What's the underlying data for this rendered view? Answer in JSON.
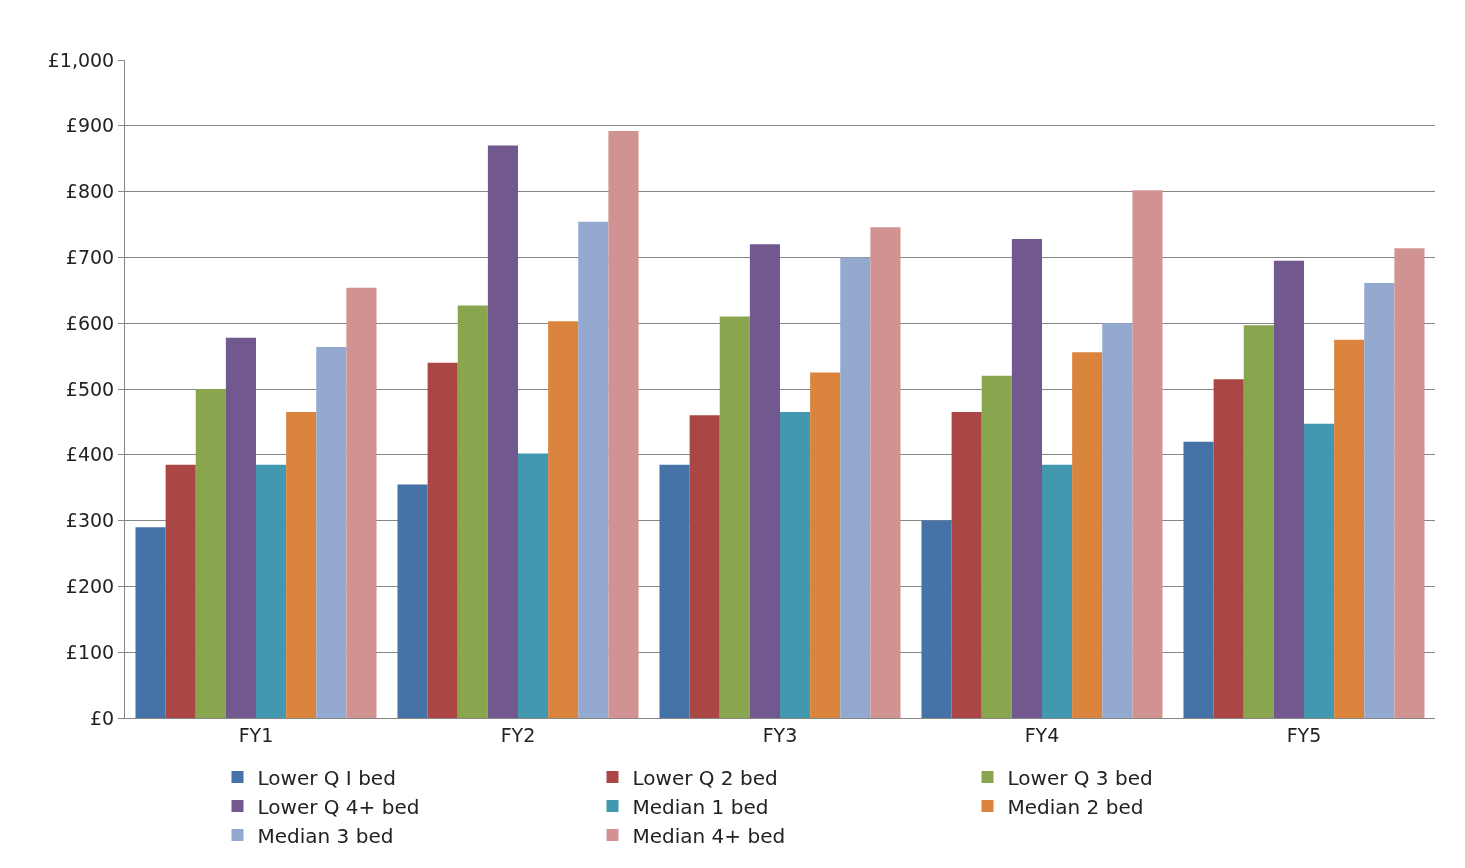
{
  "chart_data": {
    "type": "bar",
    "categories": [
      "FY1",
      "FY2",
      "FY3",
      "FY4",
      "FY5"
    ],
    "series": [
      {
        "name": "Lower Q I bed",
        "color": "#4572a7",
        "values": [
          290,
          355,
          385,
          300,
          420
        ]
      },
      {
        "name": "Lower Q 2 bed",
        "color": "#aa4643",
        "values": [
          385,
          540,
          460,
          465,
          515
        ]
      },
      {
        "name": "Lower Q 3 bed",
        "color": "#89a54e",
        "values": [
          500,
          627,
          610,
          520,
          597
        ]
      },
      {
        "name": "Lower Q 4+ bed",
        "color": "#71588f",
        "values": [
          578,
          870,
          720,
          728,
          695
        ]
      },
      {
        "name": "Median 1 bed",
        "color": "#4198af",
        "values": [
          385,
          402,
          465,
          385,
          447
        ]
      },
      {
        "name": "Median 2 bed",
        "color": "#db843d",
        "values": [
          465,
          603,
          525,
          556,
          575
        ]
      },
      {
        "name": "Median 3 bed",
        "color": "#93a9cf",
        "values": [
          564,
          754,
          700,
          600,
          661
        ]
      },
      {
        "name": "Median 4+ bed",
        "color": "#d19392",
        "values": [
          654,
          892,
          746,
          802,
          714
        ]
      }
    ],
    "ylim": [
      0,
      1000
    ],
    "yticks": [
      {
        "value": 0,
        "label": "£0"
      },
      {
        "value": 100,
        "label": "£100"
      },
      {
        "value": 200,
        "label": "£200"
      },
      {
        "value": 300,
        "label": "£300"
      },
      {
        "value": 400,
        "label": "£400"
      },
      {
        "value": 500,
        "label": "£500"
      },
      {
        "value": 600,
        "label": "£600"
      },
      {
        "value": 700,
        "label": "£700"
      },
      {
        "value": 800,
        "label": "£800"
      },
      {
        "value": 900,
        "label": "£900"
      },
      {
        "value": 1000,
        "label": "£1,000"
      }
    ],
    "grid": "y",
    "legend": "bottom"
  }
}
